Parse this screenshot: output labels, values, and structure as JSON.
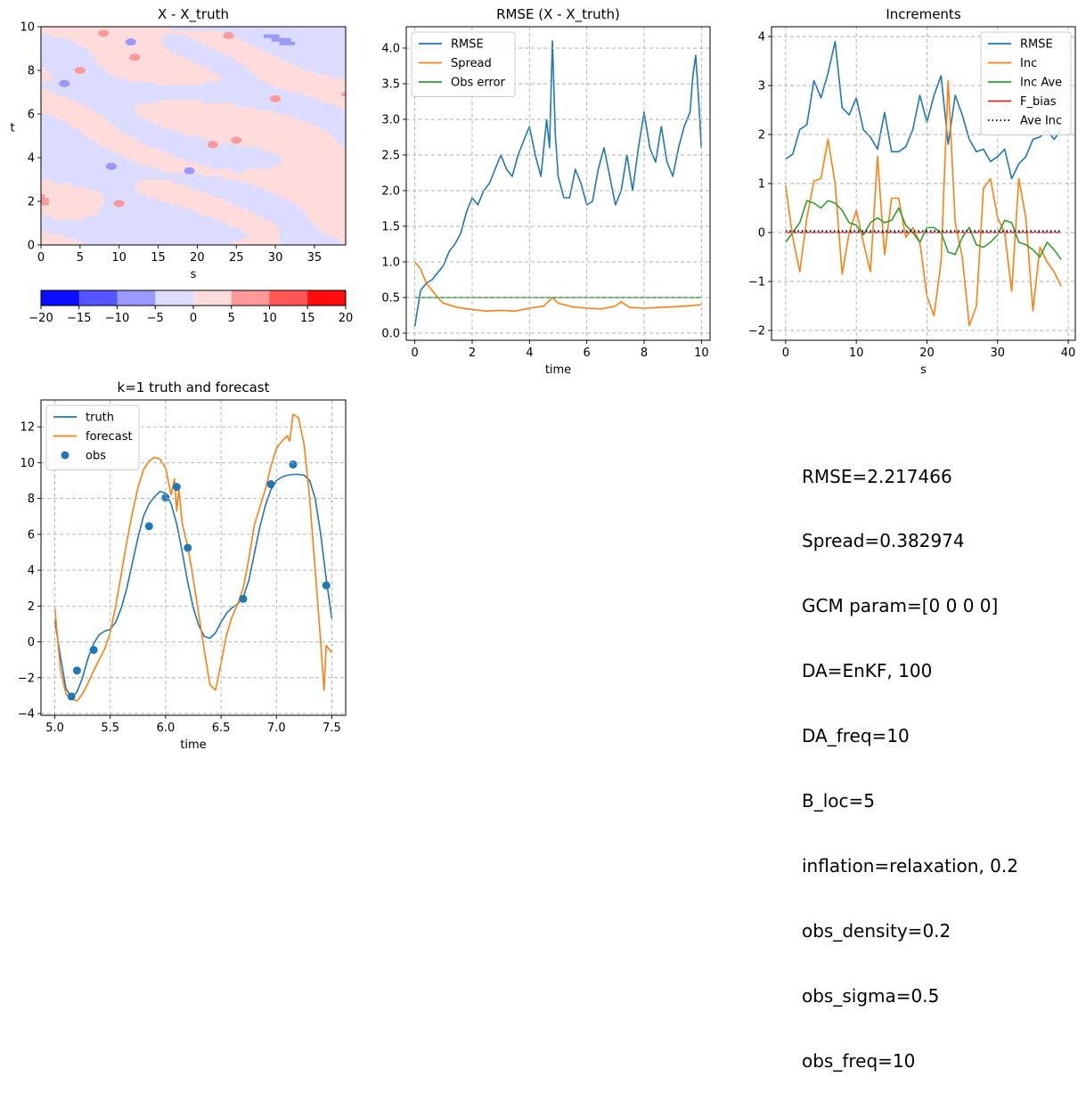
{
  "chart_data": [
    {
      "type": "heatmap",
      "title": "X - X_truth",
      "xlabel": "s",
      "ylabel": "t",
      "xlim": [
        0,
        39
      ],
      "ylim": [
        0,
        10
      ],
      "xticks": [
        "0",
        "5",
        "10",
        "15",
        "20",
        "25",
        "30",
        "35"
      ],
      "yticks": [
        "0",
        "2",
        "4",
        "6",
        "8",
        "10"
      ],
      "colorbar": {
        "ticks": [
          "−20",
          "−15",
          "−10",
          "−5",
          "0",
          "5",
          "10",
          "15",
          "20"
        ],
        "levels": [
          -20,
          -15,
          -10,
          -5,
          0,
          5,
          10,
          15,
          20
        ],
        "colors": [
          "#0c0cff",
          "#5555ff",
          "#9999ff",
          "#dcdcff",
          "#ffdcdc",
          "#ff9999",
          "#ff5555",
          "#ff0c0c"
        ]
      },
      "field_description": "mostly within -5..5, scattered patches up to about ±10"
    },
    {
      "type": "line",
      "title": "RMSE (X - X_truth)",
      "xlabel": "time",
      "ylabel": "",
      "xlim": [
        -0.3,
        10.3
      ],
      "ylim": [
        -0.1,
        4.3
      ],
      "xticks": [
        "0",
        "2",
        "4",
        "6",
        "8",
        "10"
      ],
      "yticks": [
        "0.0",
        "0.5",
        "1.0",
        "1.5",
        "2.0",
        "2.5",
        "3.0",
        "3.5",
        "4.0"
      ],
      "grid": true,
      "legend": "top-left",
      "series": [
        {
          "name": "RMSE",
          "color": "#1f77b4",
          "x": [
            0,
            0.1,
            0.2,
            0.4,
            0.6,
            0.8,
            1.0,
            1.2,
            1.4,
            1.6,
            1.8,
            2.0,
            2.2,
            2.4,
            2.6,
            2.8,
            3.0,
            3.2,
            3.4,
            3.6,
            3.8,
            4.0,
            4.2,
            4.4,
            4.6,
            4.7,
            4.8,
            4.9,
            5.0,
            5.2,
            5.4,
            5.6,
            5.8,
            6.0,
            6.2,
            6.4,
            6.6,
            6.8,
            7.0,
            7.2,
            7.4,
            7.6,
            7.8,
            8.0,
            8.2,
            8.4,
            8.6,
            8.8,
            9.0,
            9.2,
            9.4,
            9.6,
            9.7,
            9.8,
            9.9,
            10.0
          ],
          "y": [
            0.1,
            0.35,
            0.6,
            0.7,
            0.75,
            0.85,
            0.95,
            1.15,
            1.25,
            1.4,
            1.7,
            1.9,
            1.8,
            2.0,
            2.1,
            2.3,
            2.5,
            2.3,
            2.2,
            2.5,
            2.7,
            2.9,
            2.5,
            2.2,
            3.0,
            2.6,
            4.1,
            2.8,
            2.2,
            1.9,
            1.9,
            2.3,
            2.1,
            1.8,
            1.85,
            2.3,
            2.6,
            2.2,
            1.8,
            2.0,
            2.5,
            2.0,
            2.6,
            3.1,
            2.6,
            2.4,
            2.9,
            2.4,
            2.2,
            2.6,
            2.9,
            3.1,
            3.6,
            3.9,
            3.3,
            2.6
          ]
        },
        {
          "name": "Spread",
          "color": "#ff7f0e",
          "x": [
            0,
            0.2,
            0.4,
            0.6,
            0.8,
            1.0,
            1.5,
            2.0,
            2.5,
            3.0,
            3.5,
            4.0,
            4.5,
            4.8,
            5.0,
            5.5,
            6.0,
            6.5,
            7.0,
            7.2,
            7.5,
            8.0,
            8.5,
            9.0,
            9.5,
            10.0
          ],
          "y": [
            1.0,
            0.9,
            0.7,
            0.6,
            0.5,
            0.42,
            0.36,
            0.33,
            0.31,
            0.32,
            0.31,
            0.35,
            0.38,
            0.5,
            0.42,
            0.37,
            0.35,
            0.34,
            0.38,
            0.44,
            0.36,
            0.35,
            0.36,
            0.37,
            0.38,
            0.4
          ]
        },
        {
          "name": "Obs error",
          "color": "#2ca02c",
          "x": [
            0,
            10
          ],
          "y": [
            0.5,
            0.5
          ]
        }
      ]
    },
    {
      "type": "line",
      "title": "Increments",
      "xlabel": "s",
      "ylabel": "",
      "xlim": [
        -2,
        41
      ],
      "ylim": [
        -2.2,
        4.2
      ],
      "xticks": [
        "0",
        "10",
        "20",
        "30",
        "40"
      ],
      "yticks": [
        "−2",
        "−1",
        "0",
        "1",
        "2",
        "3",
        "4"
      ],
      "grid": true,
      "legend": "top-right",
      "series": [
        {
          "name": "RMSE",
          "color": "#1f77b4",
          "x": [
            0,
            1,
            2,
            3,
            4,
            5,
            6,
            7,
            8,
            9,
            10,
            11,
            12,
            13,
            14,
            15,
            16,
            17,
            18,
            19,
            20,
            21,
            22,
            23,
            24,
            25,
            26,
            27,
            28,
            29,
            30,
            31,
            32,
            33,
            34,
            35,
            36,
            37,
            38,
            39
          ],
          "y": [
            1.5,
            1.6,
            2.1,
            2.2,
            3.1,
            2.75,
            3.25,
            3.9,
            2.55,
            2.4,
            2.75,
            2.1,
            1.95,
            1.7,
            2.45,
            1.65,
            1.65,
            1.75,
            2.1,
            2.8,
            2.25,
            2.8,
            3.2,
            1.8,
            2.8,
            2.4,
            1.9,
            1.65,
            1.7,
            1.45,
            1.55,
            1.7,
            1.1,
            1.4,
            1.55,
            1.9,
            1.95,
            2.1,
            1.9,
            2.1
          ]
        },
        {
          "name": "Inc",
          "color": "#ff7f0e",
          "x": [
            0,
            1,
            2,
            3,
            4,
            5,
            6,
            7,
            8,
            9,
            10,
            11,
            12,
            13,
            14,
            15,
            16,
            17,
            18,
            19,
            20,
            21,
            22,
            23,
            24,
            25,
            26,
            27,
            28,
            29,
            30,
            31,
            32,
            33,
            34,
            35,
            36,
            37,
            38,
            39
          ],
          "y": [
            0.95,
            -0.1,
            -0.8,
            0.3,
            1.05,
            1.1,
            1.9,
            1.0,
            -0.85,
            0.0,
            0.45,
            -0.2,
            -0.8,
            1.55,
            -0.45,
            0.7,
            0.7,
            -0.1,
            0.1,
            -0.2,
            -1.3,
            -1.7,
            -0.6,
            3.1,
            0.2,
            -0.5,
            -1.9,
            -1.5,
            0.9,
            1.1,
            0.3,
            0.0,
            -1.2,
            1.1,
            0.3,
            -1.6,
            -0.3,
            -0.6,
            -0.8,
            -1.1
          ]
        },
        {
          "name": "Inc Ave",
          "color": "#2ca02c",
          "x": [
            0,
            1,
            2,
            3,
            4,
            5,
            6,
            7,
            8,
            9,
            10,
            11,
            12,
            13,
            14,
            15,
            16,
            17,
            18,
            19,
            20,
            21,
            22,
            23,
            24,
            25,
            26,
            27,
            28,
            29,
            30,
            31,
            32,
            33,
            34,
            35,
            36,
            37,
            38,
            39
          ],
          "y": [
            -0.2,
            0.0,
            0.2,
            0.65,
            0.6,
            0.5,
            0.65,
            0.6,
            0.45,
            0.2,
            0.15,
            -0.05,
            0.2,
            0.3,
            0.2,
            0.25,
            0.5,
            0.15,
            0.0,
            -0.2,
            0.1,
            0.1,
            0.0,
            -0.4,
            -0.45,
            -0.1,
            0.1,
            -0.25,
            -0.3,
            -0.2,
            -0.05,
            0.25,
            0.2,
            -0.2,
            -0.25,
            -0.35,
            -0.5,
            -0.2,
            -0.35,
            -0.55
          ]
        },
        {
          "name": "F_bias",
          "color": "#d62728",
          "x": [
            0,
            39
          ],
          "y": [
            0,
            0
          ]
        },
        {
          "name": "Ave Inc",
          "color": "#000000",
          "style": "dotted",
          "x": [
            0,
            39
          ],
          "y": [
            0.03,
            0.03
          ]
        }
      ]
    },
    {
      "type": "line",
      "title": "k=1 truth and forecast",
      "xlabel": "time",
      "ylabel": "",
      "xlim": [
        4.875,
        7.625
      ],
      "ylim": [
        -4.1,
        13.5
      ],
      "xticks": [
        "5.0",
        "5.5",
        "6.0",
        "6.5",
        "7.0",
        "7.5"
      ],
      "yticks": [
        "−4",
        "−2",
        "0",
        "2",
        "4",
        "6",
        "8",
        "10",
        "12"
      ],
      "grid": true,
      "legend": "top-left",
      "series": [
        {
          "name": "truth",
          "color": "#1f77b4",
          "x": [
            5.0,
            5.05,
            5.1,
            5.15,
            5.2,
            5.25,
            5.3,
            5.35,
            5.4,
            5.45,
            5.5,
            5.55,
            5.6,
            5.65,
            5.7,
            5.75,
            5.8,
            5.85,
            5.9,
            5.95,
            6.0,
            6.05,
            6.1,
            6.15,
            6.2,
            6.25,
            6.3,
            6.35,
            6.4,
            6.45,
            6.5,
            6.55,
            6.6,
            6.65,
            6.7,
            6.75,
            6.8,
            6.85,
            6.9,
            6.95,
            7.0,
            7.05,
            7.1,
            7.15,
            7.2,
            7.25,
            7.3,
            7.35,
            7.4,
            7.45,
            7.5
          ],
          "y": [
            1.2,
            -0.8,
            -2.6,
            -3.1,
            -2.8,
            -2.0,
            -0.9,
            -0.1,
            0.4,
            0.6,
            0.7,
            1.1,
            1.9,
            3.0,
            4.4,
            5.8,
            7.0,
            7.7,
            8.1,
            8.4,
            8.3,
            7.7,
            6.6,
            5.0,
            3.3,
            1.9,
            0.9,
            0.3,
            0.2,
            0.5,
            1.1,
            1.6,
            1.9,
            2.1,
            2.5,
            3.4,
            4.9,
            6.4,
            7.6,
            8.5,
            9.0,
            9.2,
            9.3,
            9.35,
            9.35,
            9.3,
            9.0,
            8.0,
            6.0,
            3.5,
            1.3
          ]
        },
        {
          "name": "forecast",
          "color": "#ff7f0e",
          "x": [
            5.0,
            5.05,
            5.1,
            5.15,
            5.2,
            5.25,
            5.3,
            5.35,
            5.4,
            5.45,
            5.5,
            5.55,
            5.6,
            5.65,
            5.7,
            5.75,
            5.8,
            5.85,
            5.9,
            5.95,
            6.0,
            6.05,
            6.08,
            6.1,
            6.12,
            6.15,
            6.2,
            6.25,
            6.3,
            6.35,
            6.4,
            6.45,
            6.5,
            6.55,
            6.6,
            6.65,
            6.7,
            6.75,
            6.8,
            6.85,
            6.9,
            6.95,
            7.0,
            7.05,
            7.1,
            7.12,
            7.15,
            7.2,
            7.25,
            7.3,
            7.35,
            7.4,
            7.43,
            7.45,
            7.5
          ],
          "y": [
            1.9,
            -1.5,
            -2.9,
            -3.2,
            -3.3,
            -2.9,
            -2.3,
            -1.6,
            -1.0,
            -0.4,
            0.5,
            2.0,
            3.8,
            5.6,
            7.2,
            8.6,
            9.6,
            10.1,
            10.3,
            10.2,
            9.7,
            8.2,
            9.1,
            7.3,
            8.5,
            6.6,
            5.3,
            3.5,
            1.5,
            -0.5,
            -2.4,
            -2.7,
            -1.2,
            0.4,
            1.4,
            2.1,
            3.0,
            4.6,
            6.5,
            7.5,
            8.5,
            9.8,
            10.8,
            11.2,
            11.5,
            11.2,
            12.7,
            12.5,
            11.0,
            8.0,
            4.0,
            0.0,
            -2.7,
            -0.2,
            -0.6
          ]
        },
        {
          "name": "obs",
          "color": "#1f77b4",
          "style": "markers",
          "x": [
            5.15,
            5.2,
            5.35,
            5.85,
            6.0,
            6.1,
            6.2,
            6.7,
            6.95,
            7.15,
            7.45
          ],
          "y": [
            -3.05,
            -1.6,
            -0.45,
            6.45,
            8.05,
            8.65,
            5.25,
            2.4,
            8.8,
            9.9,
            3.15
          ]
        }
      ]
    }
  ],
  "info_lines": [
    "RMSE=2.217466",
    "Spread=0.382974",
    "GCM param=[0 0 0 0]",
    "DA=EnKF, 100",
    "DA_freq=10",
    "B_loc=5",
    "inflation=relaxation, 0.2",
    "obs_density=0.2",
    "obs_sigma=0.5",
    "obs_freq=10"
  ]
}
